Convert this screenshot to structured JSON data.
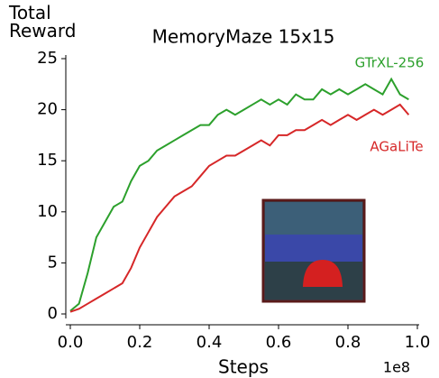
{
  "chart_data": {
    "type": "line",
    "title": "MemoryMaze 15x15",
    "xlabel": "Steps",
    "ylabel": "Total\nReward",
    "x_offset_label": "1e8",
    "x": [
      0,
      0.025,
      0.05,
      0.075,
      0.1,
      0.125,
      0.15,
      0.175,
      0.2,
      0.225,
      0.25,
      0.275,
      0.3,
      0.325,
      0.35,
      0.375,
      0.4,
      0.425,
      0.45,
      0.475,
      0.5,
      0.525,
      0.55,
      0.575,
      0.6,
      0.625,
      0.65,
      0.675,
      0.7,
      0.725,
      0.75,
      0.775,
      0.8,
      0.825,
      0.85,
      0.875,
      0.9,
      0.925,
      0.95,
      0.975
    ],
    "series": [
      {
        "name": "GTrXL-256",
        "color": "#2ca02c",
        "values": [
          0.3,
          1,
          4,
          7.5,
          9,
          10.5,
          11,
          13,
          14.5,
          15,
          16,
          16.5,
          17,
          17.5,
          18,
          18.5,
          18.5,
          19.5,
          20,
          19.5,
          20,
          20.5,
          21,
          20.5,
          21,
          20.5,
          21.5,
          21,
          21,
          22,
          21.5,
          22,
          21.5,
          22,
          22.5,
          22,
          21.5,
          23,
          21.5,
          21
        ]
      },
      {
        "name": "AGaLiTe",
        "color": "#d62728",
        "values": [
          0.2,
          0.5,
          1,
          1.5,
          2,
          2.5,
          3,
          4.5,
          6.5,
          8,
          9.5,
          10.5,
          11.5,
          12,
          12.5,
          13.5,
          14.5,
          15,
          15.5,
          15.5,
          16,
          16.5,
          17,
          16.5,
          17.5,
          17.5,
          18,
          18,
          18.5,
          19,
          18.5,
          19,
          19.5,
          19,
          19.5,
          20,
          19.5,
          20,
          20.5,
          19.5
        ]
      }
    ],
    "xlim": [
      0,
      1
    ],
    "ylim": [
      0,
      25
    ],
    "xticks": [
      {
        "value": 0,
        "label": "0.0"
      },
      {
        "value": 0.2,
        "label": "0.2"
      },
      {
        "value": 0.4,
        "label": "0.4"
      },
      {
        "value": 0.6,
        "label": "0.6"
      },
      {
        "value": 0.8,
        "label": "0.8"
      },
      {
        "value": 1,
        "label": "1.0"
      }
    ],
    "yticks": [
      0,
      5,
      10,
      15,
      20,
      25
    ]
  }
}
